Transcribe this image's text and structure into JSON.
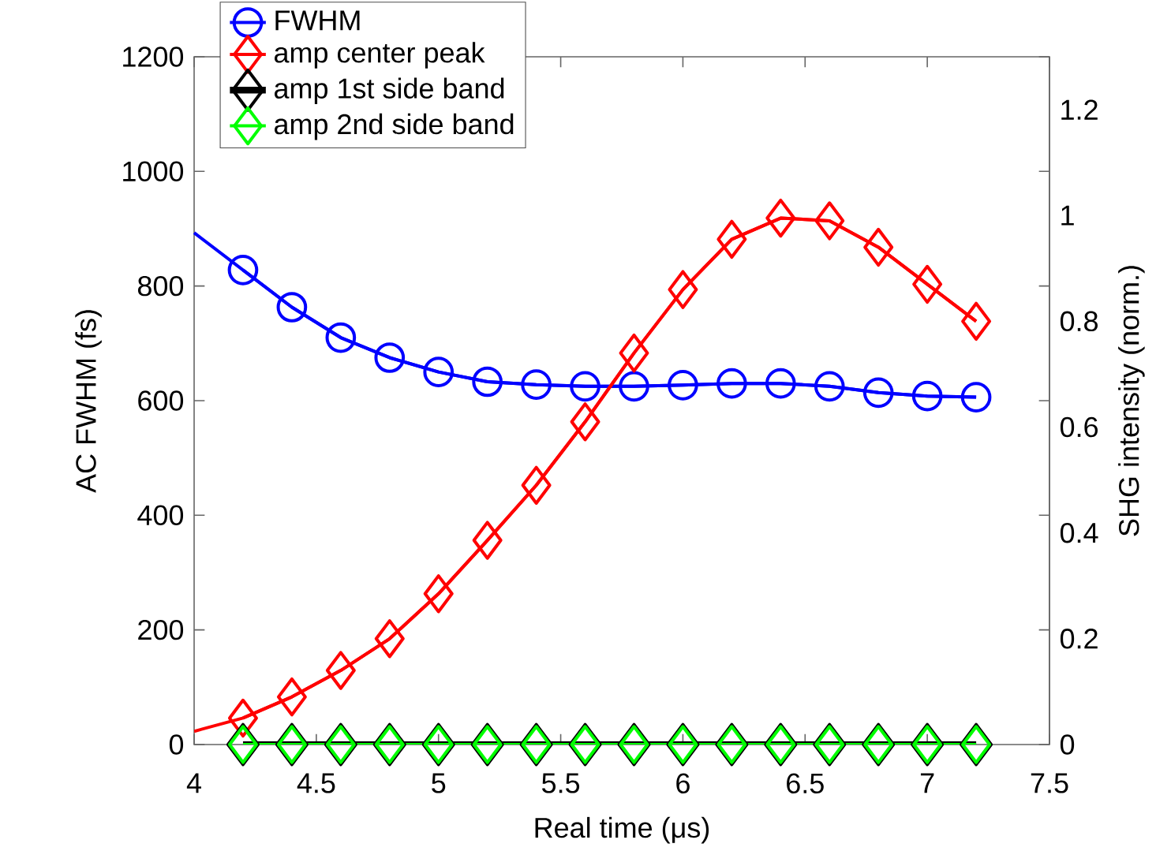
{
  "chart_data": {
    "type": "line",
    "xlabel": "Real time (μs)",
    "ylabel": "AC FWHM (fs)",
    "y2label": "SHG intensity (norm.)",
    "xlim": [
      4,
      7.5
    ],
    "xticks": [
      4,
      4.5,
      5,
      5.5,
      6,
      6.5,
      7,
      7.5
    ],
    "ylim": [
      0,
      1200
    ],
    "yticks": [
      0,
      200,
      400,
      600,
      800,
      1000,
      1200
    ],
    "y2lim": [
      0,
      1.3
    ],
    "y2ticks": [
      0,
      0.2,
      0.4,
      0.6,
      0.8,
      1,
      1.2
    ],
    "grid": false,
    "legend": "top left",
    "series": [
      {
        "name": "FWHM",
        "color": "#0000ff",
        "marker": "circle",
        "axis": "y",
        "x": [
          4.2,
          4.4,
          4.6,
          4.8,
          5.0,
          5.2,
          5.4,
          5.6,
          5.8,
          6.0,
          6.2,
          6.4,
          6.6,
          6.8,
          7.0,
          7.2
        ],
        "values": [
          828,
          763,
          710,
          675,
          650,
          633,
          628,
          625,
          625,
          627,
          630,
          630,
          625,
          614,
          608,
          606
        ]
      },
      {
        "type": "line",
        "color": "#0000ff",
        "marker": "none",
        "axis": "y",
        "x": [
          4.0,
          4.2,
          4.4,
          4.6,
          4.8,
          5.0,
          5.2,
          5.4,
          5.6,
          5.8,
          6.0,
          6.2,
          6.4,
          6.6,
          6.8,
          7.0,
          7.2
        ],
        "values": [
          893,
          828,
          763,
          710,
          675,
          650,
          633,
          628,
          625,
          625,
          627,
          630,
          630,
          625,
          614,
          608,
          606
        ]
      },
      {
        "name": "amp center peak",
        "color": "#ff0000",
        "marker": "diamond",
        "axis": "y2",
        "x": [
          4.2,
          4.4,
          4.6,
          4.8,
          5.0,
          5.2,
          5.4,
          5.6,
          5.8,
          6.0,
          6.2,
          6.4,
          6.6,
          6.8,
          7.0,
          7.2
        ],
        "values": [
          0.05,
          0.09,
          0.14,
          0.2,
          0.285,
          0.386,
          0.49,
          0.61,
          0.74,
          0.86,
          0.955,
          0.995,
          0.99,
          0.94,
          0.87,
          0.8
        ]
      },
      {
        "type": "line",
        "color": "#ff0000",
        "marker": "none",
        "axis": "y2",
        "x": [
          4.0,
          4.2,
          4.4,
          4.6,
          4.8,
          5.0,
          5.2,
          5.4,
          5.6,
          5.8,
          6.0,
          6.2,
          6.4,
          6.6,
          6.8,
          7.0,
          7.2
        ],
        "values": [
          0.025,
          0.05,
          0.09,
          0.14,
          0.2,
          0.285,
          0.386,
          0.49,
          0.61,
          0.74,
          0.86,
          0.955,
          0.995,
          0.99,
          0.94,
          0.87,
          0.8
        ]
      },
      {
        "name": "amp 1st side band",
        "color": "#000000",
        "marker": "diamond",
        "axis": "y2",
        "x": [
          4.2,
          4.4,
          4.6,
          4.8,
          5.0,
          5.2,
          5.4,
          5.6,
          5.8,
          6.0,
          6.2,
          6.4,
          6.6,
          6.8,
          7.0,
          7.2
        ],
        "values": [
          0,
          0,
          0,
          0,
          0,
          0,
          0,
          0,
          0,
          0,
          0,
          0,
          0,
          0,
          0,
          0
        ]
      },
      {
        "name": "amp 2nd side band",
        "color": "#00ff00",
        "marker": "diamond",
        "axis": "y2",
        "x": [
          4.2,
          4.4,
          4.6,
          4.8,
          5.0,
          5.2,
          5.4,
          5.6,
          5.8,
          6.0,
          6.2,
          6.4,
          6.6,
          6.8,
          7.0,
          7.2
        ],
        "values": [
          0,
          0,
          0,
          0,
          0,
          0,
          0,
          0,
          0,
          0,
          0,
          0,
          0,
          0,
          0,
          0
        ]
      }
    ]
  }
}
